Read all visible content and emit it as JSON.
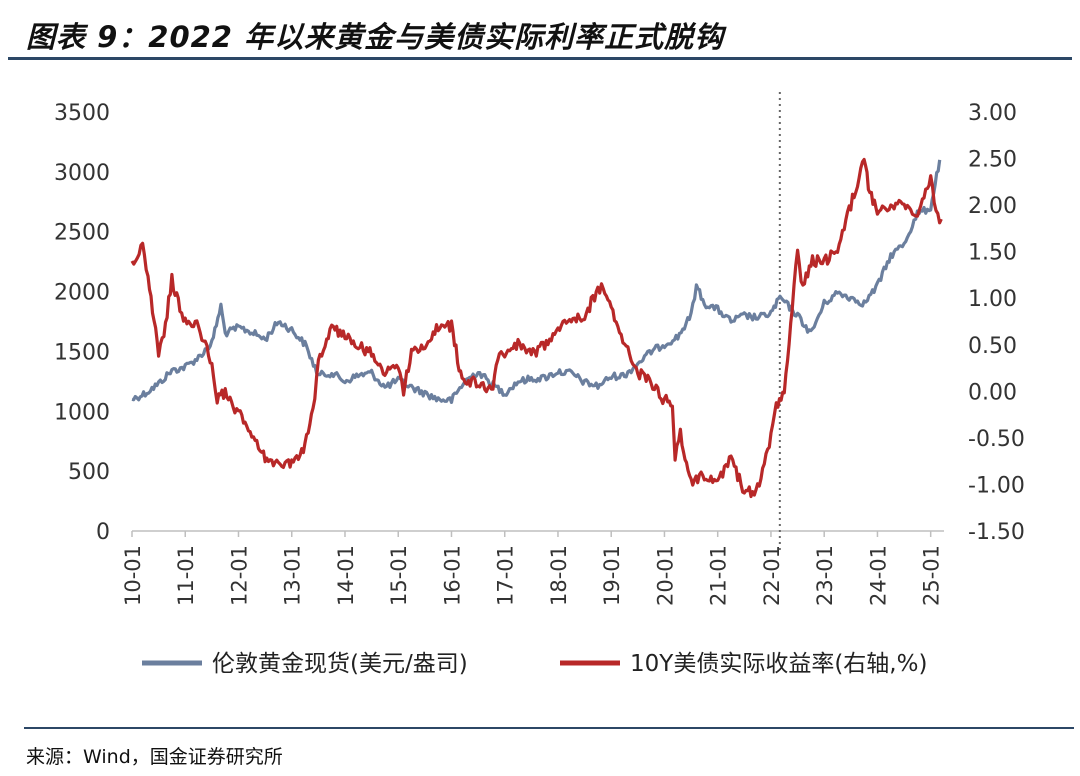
{
  "title": "图表 9：2022 年以来黄金与美债实际利率正式脱钩",
  "source": "来源：Wind，国金证券研究所",
  "chart_data": {
    "type": "line",
    "x_ticks": [
      "10-01",
      "11-01",
      "12-01",
      "13-01",
      "14-01",
      "15-01",
      "16-01",
      "17-01",
      "18-01",
      "19-01",
      "20-01",
      "21-01",
      "22-01",
      "23-01",
      "24-01",
      "25-01"
    ],
    "y_left": {
      "range": [
        0,
        3500
      ],
      "ticks": [
        "0",
        "500",
        "1000",
        "1500",
        "2000",
        "2500",
        "3000",
        "3500"
      ]
    },
    "y_right": {
      "range": [
        -1.5,
        3.0
      ],
      "ticks": [
        "-1.50",
        "-1.00",
        "-0.50",
        "0.00",
        "0.50",
        "1.00",
        "1.50",
        "2.00",
        "2.50",
        "3.00"
      ]
    },
    "annotation": {
      "type": "vertical-dotted-line",
      "x": "2022-03"
    },
    "legend_position": "bottom",
    "series": [
      {
        "name": "伦敦黄金现货(美元/盎司)",
        "axis": "left",
        "color": "#6b7f9e",
        "x": [
          2010.0,
          2010.25,
          2010.5,
          2010.75,
          2011.0,
          2011.25,
          2011.5,
          2011.67,
          2011.75,
          2012.0,
          2012.25,
          2012.5,
          2012.75,
          2013.0,
          2013.25,
          2013.5,
          2013.75,
          2014.0,
          2014.25,
          2014.5,
          2014.75,
          2015.0,
          2015.25,
          2015.5,
          2015.75,
          2016.0,
          2016.25,
          2016.5,
          2016.75,
          2017.0,
          2017.25,
          2017.5,
          2017.75,
          2018.0,
          2018.25,
          2018.5,
          2018.75,
          2019.0,
          2019.25,
          2019.5,
          2019.75,
          2020.0,
          2020.25,
          2020.5,
          2020.6,
          2020.75,
          2021.0,
          2021.25,
          2021.5,
          2021.75,
          2022.0,
          2022.17,
          2022.5,
          2022.75,
          2023.0,
          2023.25,
          2023.5,
          2023.75,
          2024.0,
          2024.25,
          2024.5,
          2024.75,
          2025.0,
          2025.17
        ],
        "y": [
          1100,
          1150,
          1230,
          1340,
          1370,
          1450,
          1570,
          1880,
          1650,
          1700,
          1660,
          1600,
          1750,
          1680,
          1560,
          1300,
          1320,
          1250,
          1300,
          1320,
          1200,
          1260,
          1200,
          1150,
          1100,
          1090,
          1250,
          1330,
          1230,
          1150,
          1250,
          1270,
          1280,
          1330,
          1320,
          1240,
          1210,
          1290,
          1300,
          1400,
          1500,
          1560,
          1620,
          1800,
          2050,
          1900,
          1850,
          1750,
          1800,
          1780,
          1820,
          1950,
          1800,
          1650,
          1900,
          1990,
          1950,
          1900,
          2050,
          2300,
          2400,
          2650,
          2700,
          3100
        ]
      },
      {
        "name": "10Y美债实际收益率(右轴,%)",
        "axis": "right",
        "color": "#b82828",
        "x": [
          2010.0,
          2010.1,
          2010.2,
          2010.3,
          2010.5,
          2010.6,
          2010.75,
          2010.9,
          2011.0,
          2011.25,
          2011.5,
          2011.6,
          2011.75,
          2011.9,
          2012.0,
          2012.25,
          2012.5,
          2012.75,
          2013.0,
          2013.25,
          2013.4,
          2013.5,
          2013.75,
          2014.0,
          2014.25,
          2014.5,
          2014.75,
          2015.0,
          2015.1,
          2015.25,
          2015.5,
          2015.75,
          2016.0,
          2016.2,
          2016.5,
          2016.75,
          2016.9,
          2017.0,
          2017.25,
          2017.5,
          2017.75,
          2018.0,
          2018.25,
          2018.5,
          2018.75,
          2018.85,
          2019.0,
          2019.25,
          2019.5,
          2019.75,
          2020.0,
          2020.15,
          2020.2,
          2020.3,
          2020.5,
          2020.75,
          2021.0,
          2021.25,
          2021.5,
          2021.75,
          2022.0,
          2022.1,
          2022.25,
          2022.4,
          2022.5,
          2022.6,
          2022.75,
          2023.0,
          2023.25,
          2023.5,
          2023.75,
          2023.83,
          2024.0,
          2024.25,
          2024.5,
          2024.75,
          2025.0,
          2025.1,
          2025.2
        ],
        "y": [
          1.4,
          1.45,
          1.6,
          1.2,
          0.4,
          0.6,
          1.2,
          0.9,
          0.75,
          0.7,
          0.3,
          -0.1,
          0.0,
          -0.2,
          -0.2,
          -0.5,
          -0.7,
          -0.8,
          -0.75,
          -0.6,
          -0.2,
          0.3,
          0.7,
          0.6,
          0.5,
          0.4,
          0.2,
          0.3,
          0.0,
          0.4,
          0.5,
          0.7,
          0.7,
          0.1,
          0.1,
          0.0,
          0.4,
          0.4,
          0.5,
          0.4,
          0.5,
          0.7,
          0.8,
          0.8,
          1.1,
          1.1,
          0.9,
          0.5,
          0.2,
          0.1,
          -0.1,
          -0.1,
          -0.7,
          -0.45,
          -1.0,
          -0.9,
          -1.0,
          -0.7,
          -1.1,
          -1.05,
          -0.5,
          -0.15,
          0.0,
          0.9,
          1.5,
          1.1,
          1.4,
          1.4,
          1.5,
          2.0,
          2.5,
          2.2,
          1.9,
          2.0,
          2.0,
          1.9,
          2.3,
          1.9,
          1.85
        ]
      }
    ]
  }
}
